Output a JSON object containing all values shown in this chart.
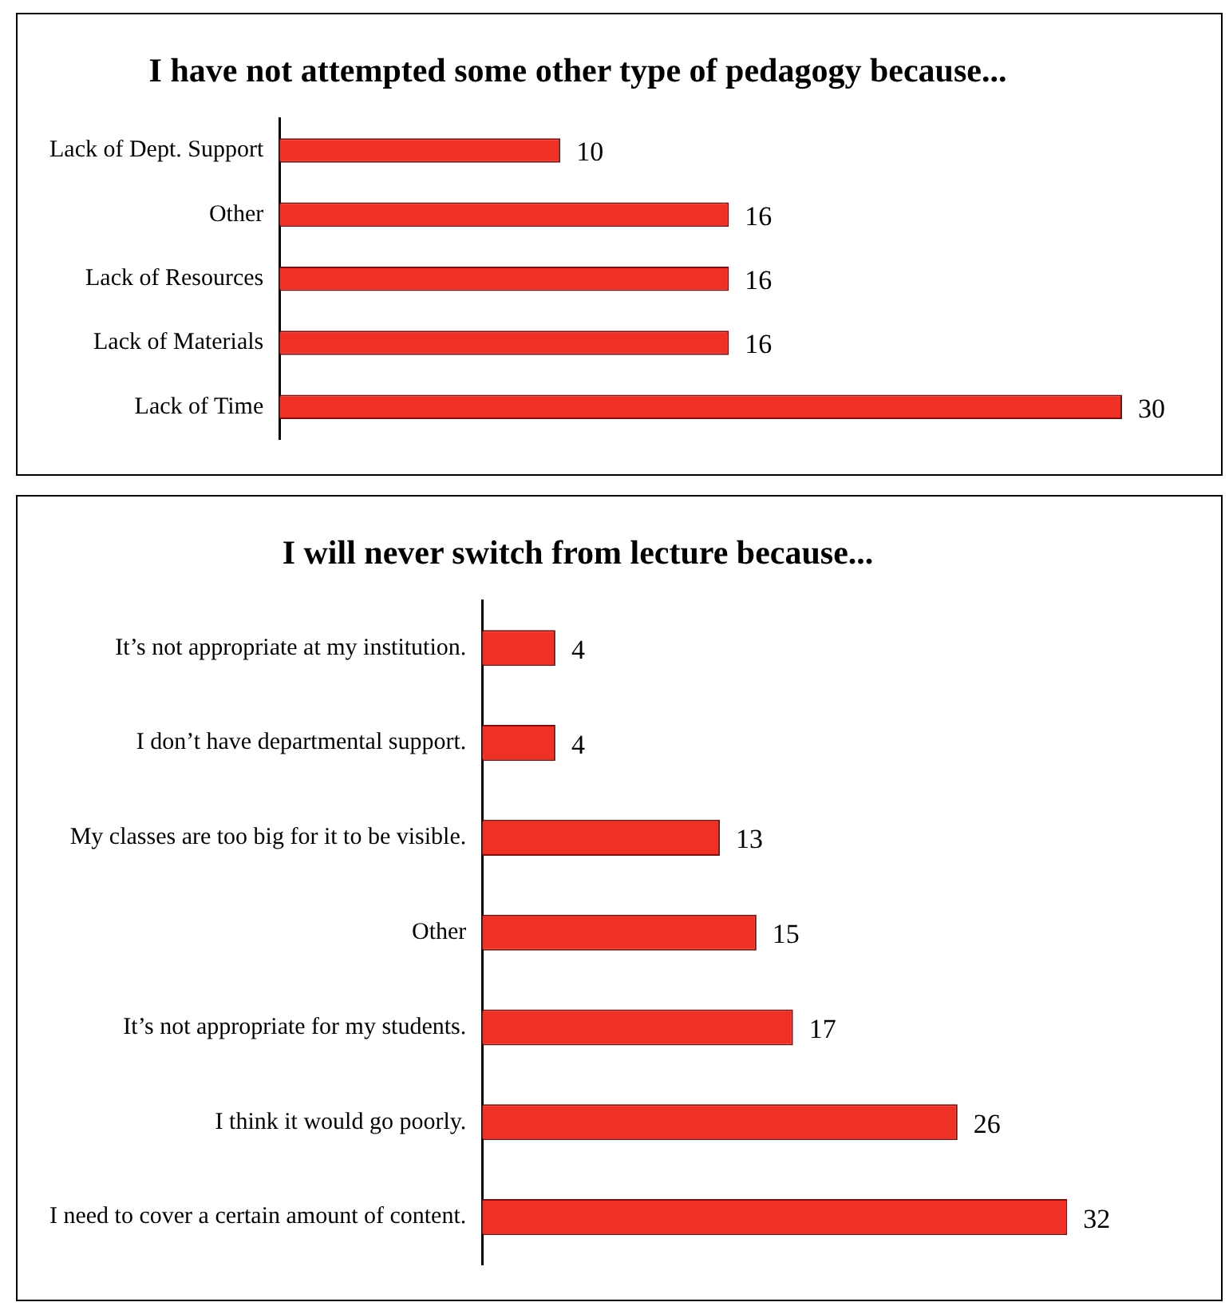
{
  "chart_data": [
    {
      "type": "bar",
      "orientation": "horizontal",
      "title": "I have not attempted some other type of pedagogy because...",
      "categories": [
        "Lack of Dept. Support",
        "Other",
        "Lack of Resources",
        "Lack of Materials",
        "Lack of Time"
      ],
      "values": [
        10,
        16,
        16,
        16,
        30
      ],
      "color": "#ee3124",
      "data_labels": true,
      "grid": false,
      "legend": false
    },
    {
      "type": "bar",
      "orientation": "horizontal",
      "title": "I will never switch from lecture because...",
      "categories": [
        "It’s not appropriate at my institution.",
        "I don’t have departmental support.",
        "My classes are too big for it to be visible.",
        "Other",
        "It’s not appropriate for my students.",
        "I think it would go poorly.",
        "I need to cover a certain amount of content."
      ],
      "values": [
        4,
        4,
        13,
        15,
        17,
        26,
        32
      ],
      "color": "#ee3124",
      "data_labels": true,
      "grid": false,
      "legend": false
    }
  ]
}
